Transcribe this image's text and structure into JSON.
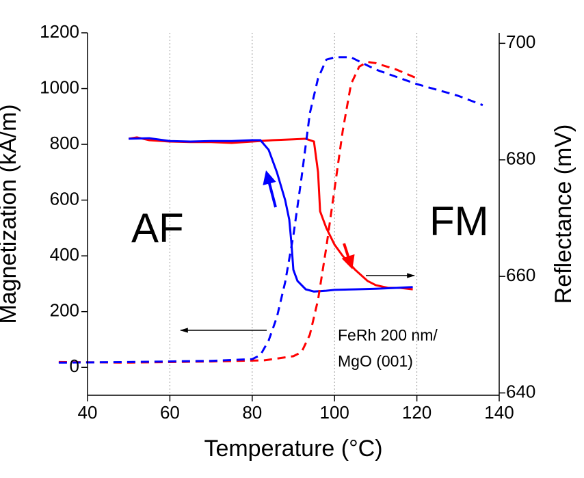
{
  "chart_data": {
    "type": "line",
    "x_label": "Temperature (°C)",
    "y_label": "Magnetization (kA/m)",
    "y2_label": "Reflectance (mV)",
    "xlim": [
      40,
      140
    ],
    "xticks": [
      40,
      60,
      80,
      100,
      120,
      140
    ],
    "ylim": [
      -100,
      1200
    ],
    "yticks": [
      0,
      200,
      400,
      600,
      800,
      1000,
      1200
    ],
    "y2lim": [
      639.6,
      701.8
    ],
    "y2ticks": [
      640,
      660,
      680,
      700
    ],
    "grid": "x",
    "annotations": [
      "AF",
      "FM",
      "FeRh 200 nm/",
      "MgO (001)"
    ],
    "series": [
      {
        "color": "#ff0000",
        "dash": false,
        "x": [
          50,
          52,
          55,
          60,
          65,
          70,
          75,
          80,
          85,
          90,
          93,
          95,
          96,
          96.5,
          97,
          98,
          100,
          102,
          105,
          108,
          110,
          113,
          116,
          119
        ],
        "values": [
          820,
          825,
          815,
          810,
          808,
          808,
          805,
          810,
          815,
          818,
          820,
          810,
          700,
          560,
          540,
          500,
          440,
          400,
          350,
          310,
          295,
          285,
          285,
          280
        ]
      },
      {
        "color": "#0000ff",
        "dash": false,
        "x": [
          50,
          55,
          60,
          65,
          70,
          75,
          80,
          82,
          84,
          86,
          88,
          89,
          89.5,
          90,
          91,
          93,
          95,
          98,
          100,
          105,
          110,
          115,
          119
        ],
        "values": [
          820,
          822,
          812,
          810,
          812,
          812,
          815,
          815,
          780,
          700,
          600,
          530,
          450,
          350,
          310,
          280,
          272,
          275,
          278,
          280,
          282,
          285,
          288
        ]
      },
      {
        "color": "#ff0000",
        "dash": true,
        "axis": "y2",
        "x": [
          33,
          50,
          70,
          83,
          90,
          92,
          94,
          96,
          98,
          100,
          102,
          104,
          106,
          108,
          110,
          115,
          120
        ],
        "values": [
          645.3,
          645.2,
          645.4,
          645.6,
          646.3,
          647,
          650,
          656,
          665,
          675,
          685,
          693,
          696,
          696.8,
          696.6,
          695.5,
          694
        ]
      },
      {
        "color": "#0000ff",
        "dash": true,
        "axis": "y2",
        "x": [
          33,
          50,
          70,
          80,
          82,
          84,
          86,
          88,
          90,
          92,
          94,
          96,
          98,
          100,
          104,
          110,
          120,
          130,
          136
        ],
        "values": [
          645.2,
          645.3,
          645.5,
          645.8,
          646.5,
          649,
          653,
          659,
          667,
          677,
          688,
          694,
          697.2,
          697.6,
          697.6,
          695.5,
          693,
          691,
          689.4
        ]
      }
    ]
  }
}
